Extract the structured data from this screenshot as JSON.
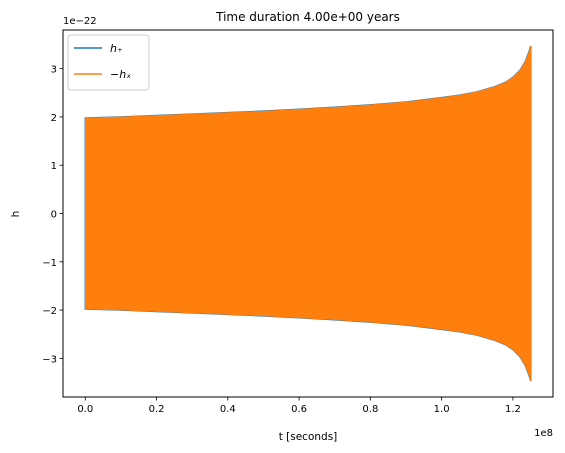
{
  "chart_data": {
    "type": "line",
    "title": "Time duration 4.00e+00 years",
    "xlabel": "t [seconds]",
    "ylabel": "h",
    "x_offset_text": "1e8",
    "y_offset_text": "1e−22",
    "xlim": [
      -0.0625,
      1.3125
    ],
    "ylim": [
      -3.8,
      3.8
    ],
    "xticks": [
      0.0,
      0.2,
      0.4,
      0.6,
      0.8,
      1.0,
      1.2
    ],
    "xtick_labels": [
      "0.0",
      "0.2",
      "0.4",
      "0.6",
      "0.8",
      "1.0",
      "1.2"
    ],
    "yticks": [
      -3,
      -2,
      -1,
      0,
      1,
      2,
      3
    ],
    "ytick_labels": [
      "−3",
      "−2",
      "−1",
      "0",
      "1",
      "2",
      "3"
    ],
    "grid": false,
    "legend_position": "upper-left",
    "series": [
      {
        "name": "h₊",
        "color": "#1f77b4",
        "x": [
          0.0,
          0.1,
          0.2,
          0.3,
          0.4,
          0.5,
          0.6,
          0.7,
          0.8,
          0.9,
          1.0,
          1.05,
          1.1,
          1.15,
          1.18,
          1.2,
          1.22,
          1.235,
          1.245,
          1.25
        ],
        "envelope": [
          1.98,
          2.0,
          2.03,
          2.06,
          2.09,
          2.12,
          2.16,
          2.2,
          2.25,
          2.31,
          2.4,
          2.45,
          2.52,
          2.63,
          2.72,
          2.82,
          2.97,
          3.15,
          3.35,
          3.47
        ]
      },
      {
        "name": "−hₓ",
        "color": "#ff7f0e",
        "x": [
          0.0,
          0.1,
          0.2,
          0.3,
          0.4,
          0.5,
          0.6,
          0.7,
          0.8,
          0.9,
          1.0,
          1.05,
          1.1,
          1.15,
          1.18,
          1.2,
          1.22,
          1.235,
          1.245,
          1.25
        ],
        "envelope": [
          1.98,
          2.0,
          2.03,
          2.06,
          2.09,
          2.12,
          2.16,
          2.2,
          2.25,
          2.31,
          2.4,
          2.45,
          2.52,
          2.63,
          2.72,
          2.82,
          2.97,
          3.15,
          3.35,
          3.47
        ]
      }
    ]
  }
}
